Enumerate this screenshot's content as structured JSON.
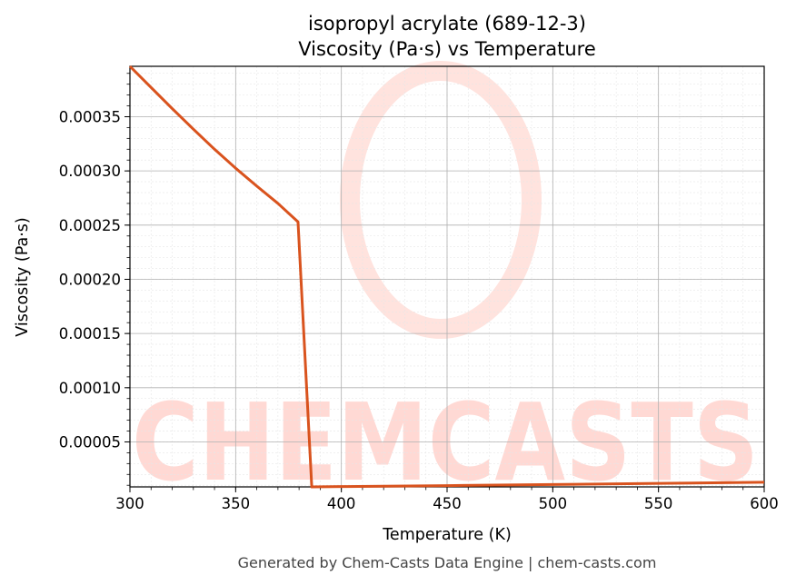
{
  "chart_data": {
    "type": "line",
    "title_line1": "isopropyl acrylate (689-12-3)",
    "title_line2": "Viscosity (Pa·s) vs Temperature",
    "xlabel": "Temperature (K)",
    "ylabel": "Viscosity (Pa·s)",
    "xlim": [
      300,
      600
    ],
    "ylim": [
      8.5e-06,
      0.0003965
    ],
    "x_ticks": [
      300,
      350,
      400,
      450,
      500,
      550,
      600
    ],
    "x_tick_labels": [
      "300",
      "350",
      "400",
      "450",
      "500",
      "550",
      "600"
    ],
    "y_ticks": [
      5e-05,
      0.0001,
      0.00015,
      0.0002,
      0.00025,
      0.0003,
      0.00035
    ],
    "y_tick_labels": [
      "0.00005",
      "0.00010",
      "0.00015",
      "0.00020",
      "0.00025",
      "0.00030",
      "0.00035"
    ],
    "grid": true,
    "line_color": "#d9531e",
    "series": [
      {
        "x": [
          300,
          310,
          320,
          330,
          340,
          350,
          360,
          370,
          379.5,
          386,
          400,
          450,
          500,
          550,
          600
        ],
        "values": [
          0.0003965,
          0.000377,
          0.0003575,
          0.0003385,
          0.00032,
          0.0003025,
          0.000286,
          0.00027,
          0.000253,
          8.5e-06,
          8.8e-06,
          9.7e-06,
          1.07e-05,
          1.17e-05,
          1.28e-05
        ]
      }
    ]
  },
  "watermark": {
    "text": "CHEMCASTS",
    "color": "#ffd9d4"
  },
  "footer": "Generated by Chem-Casts Data Engine | chem-casts.com"
}
